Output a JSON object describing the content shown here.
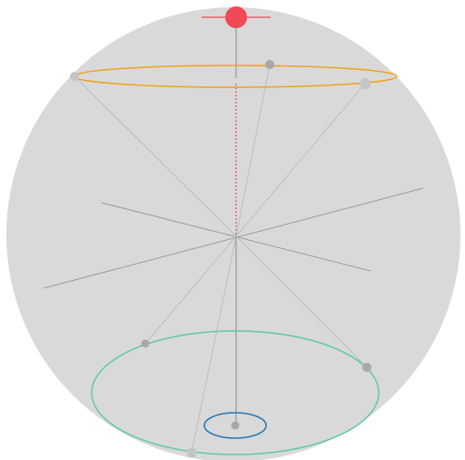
{
  "colors": {
    "sphere_fill": "#d9d9d9",
    "axis_line": "#9a9a9a",
    "spoke_line": "#bdbdbd",
    "top_marker": "#ef4a55",
    "top_ring": "#f0a21e",
    "bottom_ring": "#5dc9a6",
    "inner_ring": "#2b78b5",
    "node_dot": "#a8a8a8",
    "node_dot_light": "#c4c4c4"
  },
  "icons": {
    "top_marker": "red-dot-icon"
  }
}
